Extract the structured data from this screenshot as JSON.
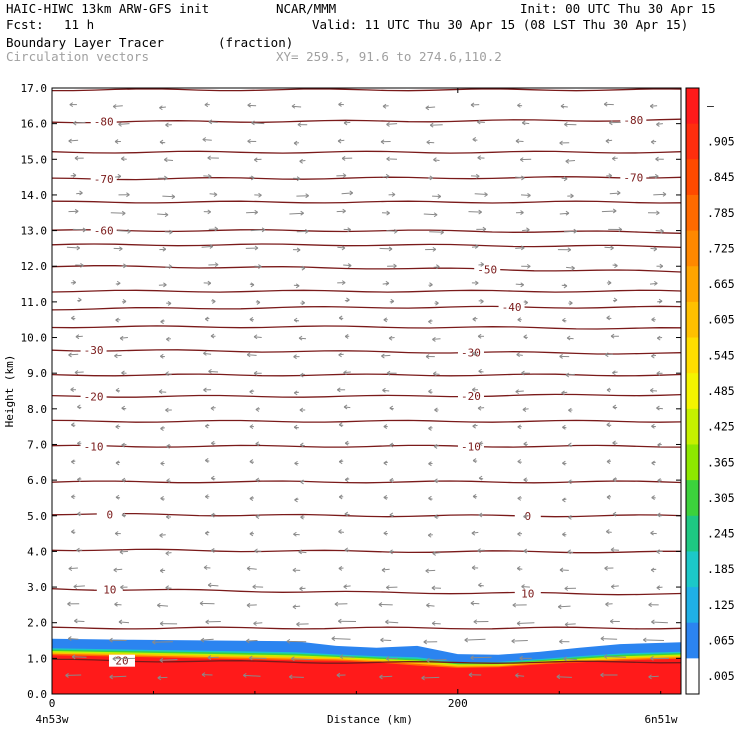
{
  "header": {
    "model": "HAIC-HIWC 13km ARW-GFS init",
    "org": "NCAR/MMM",
    "init": "Init: 00 UTC Thu 30 Apr 15",
    "fcst_label": "Fcst:",
    "fcst_value": "11 h",
    "valid": "Valid: 11 UTC Thu 30 Apr 15 (08 LST Thu 30 Apr 15)",
    "field": "Boundary Layer Tracer",
    "field_units": "(fraction)",
    "overlay": "Circulation vectors",
    "xy": "XY= 259.5, 91.6 to 274.6,110.2"
  },
  "chart_data": {
    "type": "heatmap",
    "title": "Boundary Layer Tracer",
    "units": "(fraction)",
    "xlabel": "Distance (km)",
    "ylabel": "Height (km)",
    "xlim": [
      0,
      310
    ],
    "ylim": [
      0,
      17
    ],
    "x_ticks": [
      0,
      200
    ],
    "x_endpoint_labels": [
      "4n53w",
      "6n51w"
    ],
    "y_ticks": [
      "0.0",
      "1.0",
      "2.0",
      "3.0",
      "4.0",
      "5.0",
      "6.0",
      "7.0",
      "8.0",
      "9.0",
      "10.0",
      "11.0",
      "12.0",
      "13.0",
      "14.0",
      "15.0",
      "16.0",
      "17.0"
    ],
    "colorbar": {
      "labels": [
        "–",
        ".905",
        ".845",
        ".785",
        ".725",
        ".665",
        ".605",
        ".545",
        ".485",
        ".425",
        ".365",
        ".305",
        ".245",
        ".185",
        ".125",
        ".065",
        ".005"
      ],
      "colors": [
        "#ff1a1a",
        "#ff2e0e",
        "#ff4a00",
        "#ff6a00",
        "#ff8800",
        "#ffa400",
        "#ffc000",
        "#ffdd00",
        "#f4f400",
        "#c6f000",
        "#8ee800",
        "#3cd23c",
        "#1ec882",
        "#1cc8c8",
        "#1fb0e6",
        "#2b84f0",
        "#ffffff"
      ]
    },
    "tracer_profile": {
      "x_km": [
        0,
        40,
        80,
        120,
        140,
        160,
        180,
        200,
        220,
        240,
        260,
        280,
        310
      ],
      "top_km": [
        1.55,
        1.52,
        1.5,
        1.48,
        1.35,
        1.3,
        1.35,
        1.12,
        1.1,
        1.18,
        1.3,
        1.4,
        1.45
      ],
      "core_km": [
        1.05,
        1.0,
        0.95,
        0.9,
        0.9,
        0.85,
        0.75,
        0.7,
        0.72,
        0.8,
        0.85,
        0.9,
        0.95
      ]
    },
    "isotherms": [
      {
        "label": "-80",
        "h": [
          16.05,
          16.07,
          16.1
        ]
      },
      {
        "label": "-70",
        "h": [
          14.45,
          14.47,
          14.5
        ]
      },
      {
        "label": "-60",
        "h": [
          13.0,
          13.0,
          12.95
        ]
      },
      {
        "label": "-50",
        "h": [
          12.0,
          11.95,
          11.85
        ]
      },
      {
        "label": "-40",
        "h": [
          10.8,
          10.85,
          10.85
        ]
      },
      {
        "label": "-30",
        "h": [
          9.65,
          9.6,
          9.55
        ]
      },
      {
        "label": "-20",
        "h": [
          8.35,
          8.35,
          8.4
        ]
      },
      {
        "label": "-10",
        "h": [
          6.95,
          6.95,
          6.95
        ]
      },
      {
        "label": "0",
        "h": [
          5.05,
          5.0,
          5.0
        ]
      },
      {
        "label": "10",
        "h": [
          2.95,
          2.85,
          2.8
        ]
      },
      {
        "label": "20",
        "h": [
          0.95,
          0.88,
          0.9
        ]
      },
      {
        "label": "",
        "h": [
          16.95,
          16.95,
          16.95
        ]
      },
      {
        "label": "",
        "h": [
          15.2,
          15.2,
          15.2
        ]
      },
      {
        "label": "",
        "h": [
          13.8,
          13.8,
          13.8
        ]
      },
      {
        "label": "",
        "h": [
          12.6,
          12.6,
          12.55
        ]
      },
      {
        "label": "",
        "h": [
          11.3,
          11.3,
          11.3
        ]
      },
      {
        "label": "",
        "h": [
          10.3,
          10.3,
          10.25
        ]
      },
      {
        "label": "",
        "h": [
          8.95,
          8.95,
          8.95
        ]
      },
      {
        "label": "",
        "h": [
          7.65,
          7.65,
          7.65
        ]
      },
      {
        "label": "",
        "h": [
          5.95,
          5.95,
          5.95
        ]
      },
      {
        "label": "",
        "h": [
          4.05,
          4.0,
          3.98
        ]
      },
      {
        "label": "",
        "h": [
          1.85,
          1.85,
          1.85
        ]
      }
    ],
    "isotherm_label_positions": [
      {
        "label": "-80",
        "x_km": [
          25,
          286
        ]
      },
      {
        "label": "-70",
        "x_km": [
          25,
          286
        ]
      },
      {
        "label": "-60",
        "x_km": [
          25
        ]
      },
      {
        "label": "-50",
        "x_km": [
          214
        ]
      },
      {
        "label": "-40",
        "x_km": [
          226
        ]
      },
      {
        "label": "-30",
        "x_km": [
          20,
          206
        ]
      },
      {
        "label": "-20",
        "x_km": [
          20,
          206
        ]
      },
      {
        "label": "-10",
        "x_km": [
          20,
          206
        ]
      },
      {
        "label": "0",
        "x_km": [
          28,
          234
        ]
      },
      {
        "label": "10",
        "x_km": [
          28,
          234
        ]
      },
      {
        "label": "20",
        "x_km": [
          34
        ]
      }
    ],
    "vectors": {
      "x_km": [
        12,
        34,
        56,
        78,
        100,
        122,
        144,
        166,
        188,
        210,
        232,
        254,
        276,
        298
      ],
      "levels_km": [
        16.5,
        16.0,
        15.5,
        15.0,
        14.5,
        14.0,
        13.5,
        13.0,
        12.5,
        12.0,
        11.5,
        11.0,
        10.5,
        10.0,
        9.5,
        9.0,
        8.5,
        8.0,
        7.5,
        7.0,
        6.5,
        6.0,
        5.5,
        5.0,
        4.5,
        4.0,
        3.5,
        3.0,
        2.5,
        2.0,
        1.5,
        1.0,
        0.5
      ],
      "u_by_level": [
        -1.2,
        -1.6,
        -1.2,
        -1.4,
        1.2,
        1.6,
        1.8,
        1.8,
        1.6,
        1.2,
        1.0,
        0.6,
        -0.6,
        -1.0,
        -1.2,
        -1.2,
        -1.0,
        -0.8,
        -0.6,
        -0.6,
        -0.4,
        -0.4,
        -0.5,
        -0.6,
        -0.8,
        -1.0,
        -1.2,
        -1.4,
        -1.8,
        -2.2,
        -2.6,
        -2.8,
        -2.2
      ],
      "color": "#8a8a8a"
    }
  }
}
